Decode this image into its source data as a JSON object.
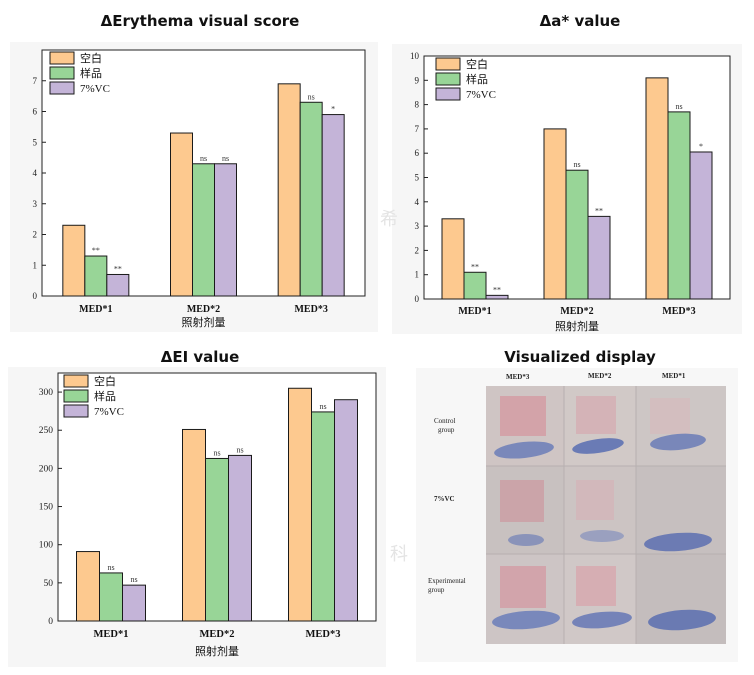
{
  "colors": {
    "blank": "#fdc98f",
    "sample": "#98d597",
    "vc": "#c4b4d8",
    "card_bg": "#f6f6f6"
  },
  "charts": [
    {
      "title": "ΔErythema visual score",
      "chart_data": {
        "type": "bar",
        "categories": [
          "MED*1",
          "MED*2",
          "MED*3"
        ],
        "series": [
          {
            "name": "空白",
            "values": [
              2.3,
              5.3,
              6.9
            ]
          },
          {
            "name": "样品",
            "values": [
              1.3,
              4.3,
              6.3
            ]
          },
          {
            "name": "7%VC",
            "values": [
              0.7,
              4.3,
              5.9
            ]
          }
        ],
        "significance": [
          [
            "",
            "",
            ""
          ],
          [
            "**",
            "ns",
            "ns"
          ],
          [
            "**",
            "ns",
            "*"
          ]
        ],
        "xlabel": "照射剂量",
        "ylabel": "",
        "ylim": [
          0,
          8
        ],
        "yticks": [
          0,
          1,
          2,
          3,
          4,
          5,
          6,
          7
        ],
        "legend": "top-left",
        "grid": false
      }
    },
    {
      "title": "Δa* value",
      "chart_data": {
        "type": "bar",
        "categories": [
          "MED*1",
          "MED*2",
          "MED*3"
        ],
        "series": [
          {
            "name": "空白",
            "values": [
              3.3,
              7.0,
              9.1
            ]
          },
          {
            "name": "样品",
            "values": [
              1.1,
              5.3,
              7.7
            ]
          },
          {
            "name": "7%VC",
            "values": [
              0.15,
              3.4,
              6.05
            ]
          }
        ],
        "significance": [
          [
            "",
            "",
            ""
          ],
          [
            "**",
            "ns",
            "ns"
          ],
          [
            "**",
            "**",
            "*"
          ]
        ],
        "xlabel": "照射剂量",
        "ylabel": "",
        "ylim": [
          0,
          10
        ],
        "yticks": [
          0,
          1,
          2,
          3,
          4,
          5,
          6,
          7,
          8,
          9,
          10
        ],
        "legend": "top-left",
        "grid": false
      }
    },
    {
      "title": "ΔEI value",
      "chart_data": {
        "type": "bar",
        "categories": [
          "MED*1",
          "MED*2",
          "MED*3"
        ],
        "series": [
          {
            "name": "空白",
            "values": [
              91,
              251,
              305
            ]
          },
          {
            "name": "样品",
            "values": [
              63,
              213,
              274
            ]
          },
          {
            "name": "7%VC",
            "values": [
              47,
              217,
              290
            ]
          }
        ],
        "significance": [
          [
            "",
            "",
            ""
          ],
          [
            "ns",
            "ns",
            "ns"
          ],
          [
            "ns",
            "ns",
            ""
          ]
        ],
        "xlabel": "照射剂量",
        "ylabel": "",
        "ylim": [
          0,
          325
        ],
        "yticks": [
          0,
          50,
          100,
          150,
          200,
          250,
          300
        ],
        "legend": "top-left",
        "grid": false
      }
    }
  ],
  "visual": {
    "title": "Visualized display",
    "columns": [
      "MED*3",
      "MED*2",
      "MED*1"
    ],
    "rows": [
      {
        "label_lines": [
          "Control",
          "group"
        ]
      },
      {
        "label_lines": [
          "7%VC"
        ]
      },
      {
        "label_lines": [
          "Experimental",
          "group"
        ]
      }
    ]
  },
  "watermarks": [
    "希",
    "科"
  ]
}
